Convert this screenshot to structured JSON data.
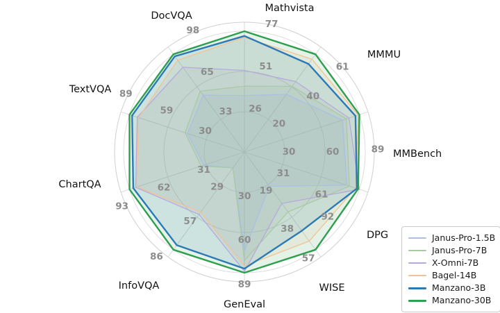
{
  "chart_data": {
    "type": "radar",
    "title": "",
    "axes": [
      {
        "label": "Mathvista",
        "max": 77,
        "ticks": [
          26,
          51,
          77
        ]
      },
      {
        "label": "MMMU",
        "max": 61,
        "ticks": [
          20,
          40,
          61
        ]
      },
      {
        "label": "MMBench",
        "max": 89,
        "ticks": [
          30,
          60,
          89
        ]
      },
      {
        "label": "DPG",
        "max": 92,
        "ticks": [
          31,
          61,
          92
        ]
      },
      {
        "label": "WISE",
        "max": 57,
        "ticks": [
          19,
          38,
          57
        ]
      },
      {
        "label": "GenEval",
        "max": 89,
        "ticks": [
          30,
          60,
          89
        ]
      },
      {
        "label": "InfoVQA",
        "max": 86,
        "ticks": [
          29,
          57,
          86
        ]
      },
      {
        "label": "ChartQA",
        "max": 93,
        "ticks": [
          31,
          62,
          93
        ]
      },
      {
        "label": "TextVQA",
        "max": 89,
        "ticks": [
          30,
          59,
          89
        ]
      },
      {
        "label": "DocVQA",
        "max": 98,
        "ticks": [
          33,
          65,
          98
        ]
      }
    ],
    "series": [
      {
        "name": "Janus-Pro-1.5B",
        "color": "#a9bfe6",
        "line_width": 1.3,
        "values": [
          36,
          36,
          76,
          82,
          20,
          73,
          14,
          33,
          44,
          57
        ]
      },
      {
        "name": "Janus-Pro-7B",
        "color": "#a9c9a4",
        "line_width": 1.3,
        "values": [
          42,
          41,
          79,
          84,
          35,
          80,
          14,
          35,
          46,
          61
        ]
      },
      {
        "name": "X-Omni-7B",
        "color": "#b7a8dc",
        "line_width": 1.3,
        "values": [
          52,
          44,
          81,
          92,
          30,
          88,
          55,
          88,
          83,
          85
        ]
      },
      {
        "name": "Bagel-14B",
        "color": "#f2c293",
        "line_width": 1.3,
        "values": [
          73,
          58,
          88,
          89,
          52,
          84,
          53,
          87,
          82,
          92
        ]
      },
      {
        "name": "Manzano-3B",
        "color": "#2b79b5",
        "line_width": 2.4,
        "values": [
          74,
          55,
          86,
          90,
          46,
          86,
          82,
          90,
          87,
          96
        ]
      },
      {
        "name": "Manzano-30B",
        "color": "#2e9e4f",
        "line_width": 2.4,
        "values": [
          77,
          61,
          89,
          91,
          57,
          89,
          86,
          93,
          89,
          98
        ]
      }
    ],
    "style": {
      "grid_ring_color": "#dcdcdc",
      "outer_spine_color": "#cfcfcf",
      "spoke_color": "#d6d6d6",
      "tick_label_color": "#8c8c8c",
      "axis_label_color": "#111111",
      "fill_opacity": 0.13,
      "legend_position": "lower right",
      "grid": true
    }
  },
  "legend": {
    "items": [
      "Janus-Pro-1.5B",
      "Janus-Pro-7B",
      "X-Omni-7B",
      "Bagel-14B",
      "Manzano-3B",
      "Manzano-30B"
    ]
  }
}
